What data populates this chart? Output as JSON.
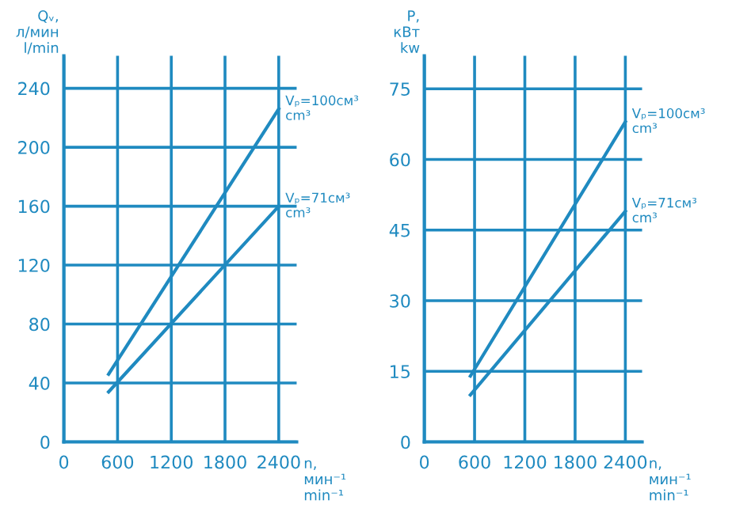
{
  "chart_data": [
    {
      "type": "line",
      "ylabel": "Qᵥ,\nл/мин\nl/min",
      "xlabel": "n,\nмин⁻¹\nmin⁻¹",
      "xlim": [
        0,
        2600
      ],
      "ylim": [
        0,
        262
      ],
      "xticks": [
        0,
        600,
        1200,
        1800,
        2400
      ],
      "yticks": [
        0,
        40,
        80,
        120,
        160,
        200,
        240
      ],
      "grid": true,
      "legend": false,
      "marker": "none",
      "line_style": "solid",
      "series": [
        {
          "name": "Vₚ=100см³\ncm³",
          "color": "#1f8ac0",
          "x": [
            500,
            2400
          ],
          "values": [
            46,
            226
          ]
        },
        {
          "name": "Vₚ=71см³\ncm³",
          "color": "#1f8ac0",
          "x": [
            500,
            2400
          ],
          "values": [
            34,
            160
          ]
        }
      ]
    },
    {
      "type": "line",
      "ylabel": "P,\nкВт\nkw",
      "xlabel": "n,\nмин⁻¹\nmin⁻¹",
      "xlim": [
        0,
        2600
      ],
      "ylim": [
        0,
        82
      ],
      "xticks": [
        0,
        600,
        1200,
        1800,
        2400
      ],
      "yticks": [
        0,
        15,
        30,
        45,
        60,
        75
      ],
      "grid": true,
      "legend": false,
      "marker": "none",
      "line_style": "solid",
      "series": [
        {
          "name": "Vₚ=100см³\ncm³",
          "color": "#1f8ac0",
          "x": [
            550,
            2400
          ],
          "values": [
            14,
            68
          ]
        },
        {
          "name": "Vₚ=71см³\ncm³",
          "color": "#1f8ac0",
          "x": [
            550,
            2400
          ],
          "values": [
            10,
            49
          ]
        }
      ]
    }
  ]
}
